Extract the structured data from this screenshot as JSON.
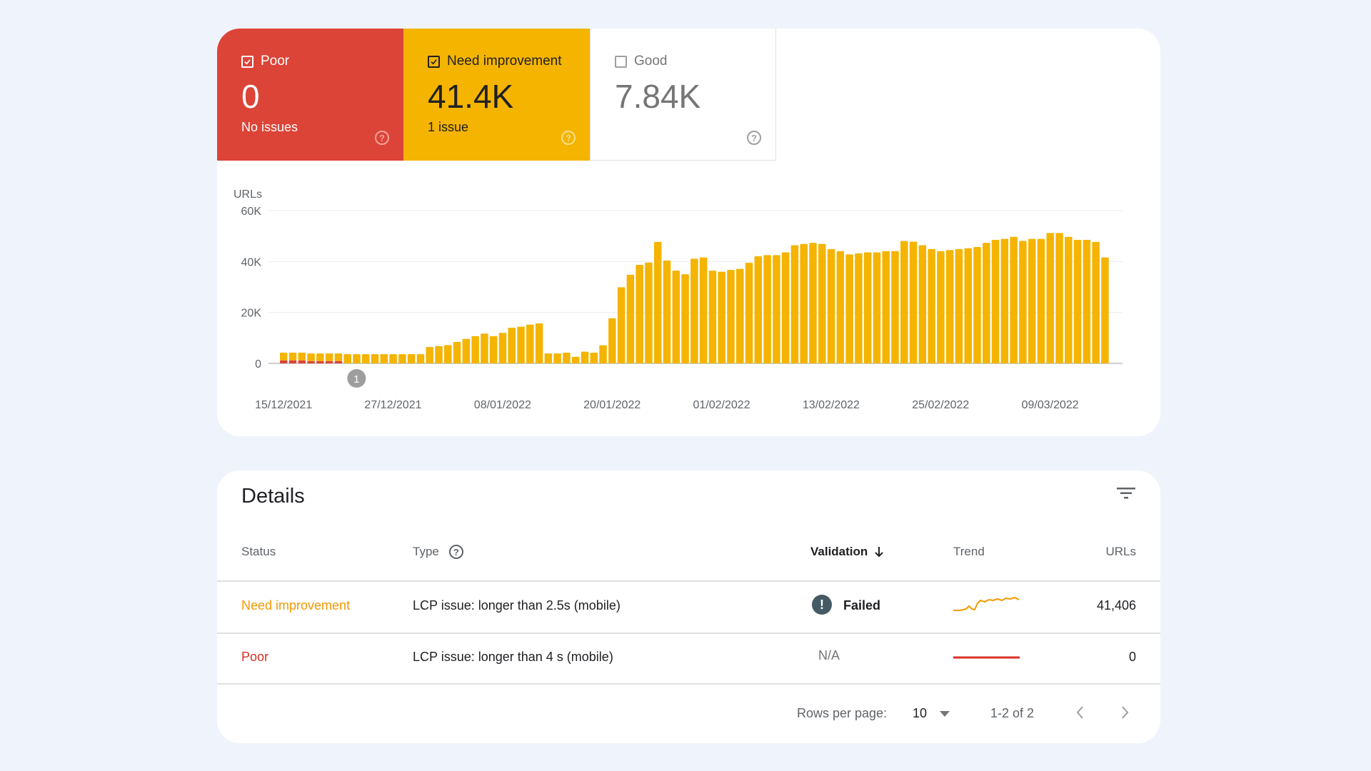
{
  "tiles": {
    "poor": {
      "label": "Poor",
      "checked": true,
      "value": "0",
      "sub": "No issues",
      "help_icon": "help-circle-icon"
    },
    "need_improvement": {
      "label": "Need improvement",
      "checked": true,
      "value": "41.4K",
      "sub": "1 issue",
      "help_icon": "help-circle-icon"
    },
    "good": {
      "label": "Good",
      "checked": false,
      "value": "7.84K",
      "help_icon": "help-circle-icon"
    }
  },
  "colors": {
    "poor": "#dc4437",
    "need_improvement": "#f4b400",
    "good": "#ffffff",
    "background": "#eff4fc"
  },
  "chart_data": {
    "type": "bar",
    "stacked": true,
    "ylabel": "URLs",
    "ylim": [
      0,
      60000
    ],
    "yticks": [
      "0",
      "20K",
      "40K",
      "60K"
    ],
    "ytick_values": [
      0,
      20000,
      40000,
      60000
    ],
    "grid": true,
    "x_start": "15/12/2021",
    "x_end": "15/03/2022",
    "xticks": [
      "15/12/2021",
      "27/12/2021",
      "08/01/2022",
      "20/01/2022",
      "01/02/2022",
      "13/02/2022",
      "25/02/2022",
      "09/03/2022"
    ],
    "annotation": {
      "label": "1",
      "date": "23/12/2021"
    },
    "series": [
      {
        "key": "poor",
        "color": "#dc4437",
        "values": [
          1200,
          1200,
          1200,
          900,
          900,
          900,
          900,
          0,
          0,
          0,
          0,
          0,
          0,
          0,
          0,
          0,
          0,
          0,
          0,
          0,
          0,
          0,
          0,
          0,
          0,
          0,
          0,
          0,
          0,
          0,
          0,
          0,
          0,
          0,
          0,
          0,
          0,
          0,
          0,
          0,
          0,
          0,
          0,
          0,
          0,
          0,
          0,
          0,
          0,
          0,
          0,
          0,
          0,
          0,
          0,
          0,
          0,
          0,
          0,
          0,
          0,
          0,
          0,
          0,
          0,
          0,
          0,
          0,
          0,
          0,
          0,
          0,
          0,
          0,
          0,
          0,
          0,
          0,
          0,
          0,
          0,
          0,
          0,
          0,
          0,
          0,
          0,
          0,
          0,
          0,
          0
        ]
      },
      {
        "key": "need_improvement",
        "color": "#f4b400",
        "values": [
          3000,
          3000,
          3000,
          3000,
          3000,
          3000,
          3000,
          3600,
          3600,
          3600,
          3600,
          3600,
          3600,
          3600,
          3600,
          3600,
          6400,
          6800,
          7200,
          8400,
          9600,
          10700,
          11700,
          10700,
          12000,
          14000,
          14400,
          15200,
          15700,
          3900,
          3900,
          4200,
          2600,
          4600,
          4200,
          7100,
          17700,
          29900,
          34800,
          38700,
          39600,
          47700,
          40400,
          36400,
          35000,
          41100,
          41600,
          36400,
          36000,
          36700,
          37100,
          39500,
          42100,
          42500,
          42500,
          43600,
          46400,
          46900,
          47300,
          46900,
          44900,
          44100,
          42800,
          43200,
          43600,
          43600,
          44100,
          44100,
          48100,
          47800,
          46400,
          44900,
          44100,
          44500,
          44900,
          45200,
          45700,
          47300,
          48500,
          48900,
          49700,
          48100,
          48900,
          48900,
          51200,
          51200,
          49700,
          48500,
          48500,
          47700,
          41600
        ]
      }
    ]
  },
  "details": {
    "title": "Details",
    "filter_icon": "filter-icon",
    "columns": {
      "status": "Status",
      "type": "Type",
      "validation": "Validation",
      "trend": "Trend",
      "urls": "URLs"
    },
    "sort": {
      "column": "validation",
      "direction": "descending"
    },
    "rows": [
      {
        "status": "Need improvement",
        "status_color": "#f29900",
        "type": "LCP issue: longer than 2.5s (mobile)",
        "validation": "Failed",
        "validation_icon": "exclamation-circle-icon",
        "trend_color": "#f29900",
        "urls": "41,406"
      },
      {
        "status": "Poor",
        "status_color": "#d93025",
        "type": "LCP issue: longer than 4 s (mobile)",
        "validation": "N/A",
        "trend_color": "#d93025",
        "urls": "0"
      }
    ],
    "pagination": {
      "rows_per_page_label": "Rows per page:",
      "rows_per_page": "10",
      "range": "1-2 of 2"
    }
  }
}
